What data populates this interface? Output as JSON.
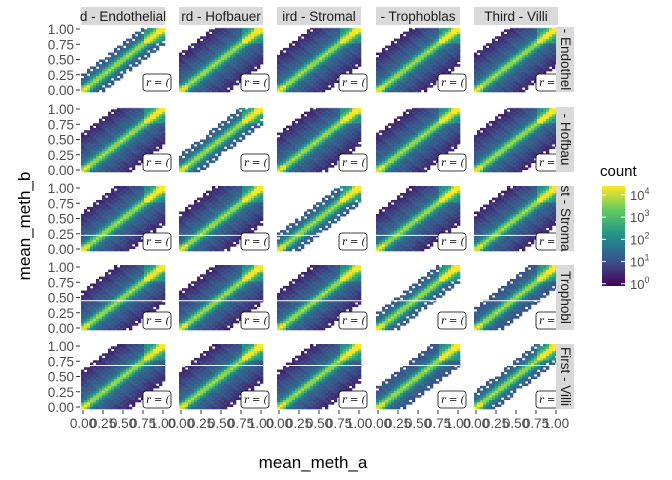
{
  "chart_data": {
    "type": "heatmap",
    "title": "",
    "xlabel": "mean_meth_a",
    "ylabel": "mean_meth_b",
    "xlim": [
      0,
      1
    ],
    "ylim": [
      0,
      1
    ],
    "x_tick_labels": [
      "0.00",
      "0.25",
      "0.50",
      "0.75",
      "1.00"
    ],
    "y_tick_labels": [
      "0.00",
      "0.25",
      "0.50",
      "0.75",
      "1.00"
    ],
    "column_facets": [
      "d - Endothelial",
      "rd - Hofbauer",
      "ird - Stromal",
      "- Trophoblas",
      "Third - Villi"
    ],
    "row_facets": [
      "- Endothel",
      "- Hofbau",
      "st - Stroma",
      "Trophobl",
      "First - Villi"
    ],
    "panel_annotation": "r = (",
    "legend": {
      "title": "count",
      "scale": "log10",
      "colors": [
        "#440154",
        "#3b528b",
        "#21908d",
        "#5dc963",
        "#fde725"
      ],
      "breaks": [
        {
          "base": "10",
          "exp": "0"
        },
        {
          "base": "10",
          "exp": "1"
        },
        {
          "base": "10",
          "exp": "2"
        },
        {
          "base": "10",
          "exp": "3"
        },
        {
          "base": "10",
          "exp": "4"
        }
      ]
    },
    "reference_lines_y": [
      0.99,
      0.99,
      0.24,
      0.45,
      0.67
    ],
    "grid": false
  }
}
